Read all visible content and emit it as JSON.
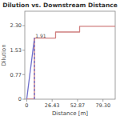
{
  "chart_data": {
    "type": "line",
    "title": "Dilution vs. Downstream Distance",
    "x_label": "Distance [m]",
    "y_label": "Dilution",
    "xlim": [
      -2,
      92
    ],
    "ylim": [
      0,
      2.75
    ],
    "xticks": [
      0,
      26.43,
      52.87,
      {
        "value": 79.3,
        "label": "79.30"
      }
    ],
    "yticks": [
      0,
      0.77,
      1.53,
      {
        "value": 2.3,
        "label": "2.30"
      }
    ],
    "grid": false,
    "series": [
      {
        "color": "#7070cc",
        "line_style": "solid",
        "x": [
          0,
          8.0
        ],
        "values": [
          0,
          1.91
        ]
      },
      {
        "color": "#d08080",
        "line_style": "solid",
        "x": [
          0,
          8.0,
          8.0,
          30.0,
          30.0,
          55.0,
          55.0,
          92.0
        ],
        "values": [
          0.0,
          0.0,
          1.91,
          1.91,
          2.1,
          2.1,
          2.28,
          2.28
        ]
      },
      {
        "color": "#7070cc",
        "line_style": "dashed",
        "x": [
          8.0,
          8.0
        ],
        "values": [
          0,
          1.91
        ]
      }
    ],
    "annotations": [
      {
        "text": "1.91",
        "x": 9.0,
        "y": 1.93
      }
    ]
  }
}
